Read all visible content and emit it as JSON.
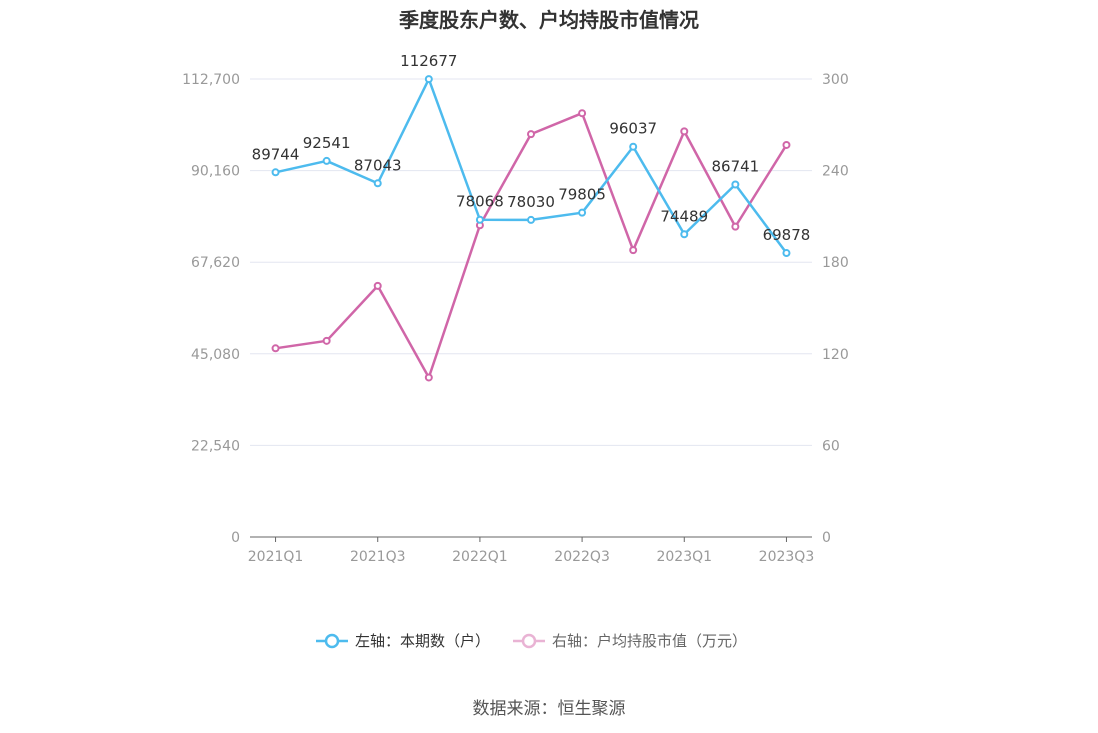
{
  "chart_data": {
    "type": "line",
    "title": "季度股东户数、户均持股市值情况",
    "categories": [
      "2021Q1",
      "2021Q2",
      "2021Q3",
      "2021Q4",
      "2022Q1",
      "2022Q2",
      "2022Q3",
      "2022Q4",
      "2023Q1",
      "2023Q2",
      "2023Q3"
    ],
    "x_tick_labels": [
      "2021Q1",
      "",
      "2021Q3",
      "",
      "2022Q1",
      "",
      "2022Q3",
      "",
      "2023Q1",
      "",
      "2023Q3"
    ],
    "left_axis": {
      "min": 0,
      "max": 112700,
      "ticks": [
        "0",
        "22,540",
        "45,080",
        "67,620",
        "90,160",
        "112,700"
      ]
    },
    "right_axis": {
      "min": 0,
      "max": 300,
      "ticks": [
        "0",
        "60",
        "120",
        "180",
        "240",
        "300"
      ]
    },
    "series": [
      {
        "name": "左轴：本期数（户）",
        "axis": "left",
        "color": "#4dbbee",
        "values": [
          89744,
          92541,
          87043,
          112677,
          78068,
          78030,
          79805,
          96037,
          74489,
          86741,
          69878
        ],
        "labels": [
          "89744",
          "92541",
          "87043",
          "112677",
          "78068",
          "78030",
          "79805",
          "96037",
          "74489",
          "86741",
          "69878"
        ]
      },
      {
        "name": "右轴：户均持股市值（万元）",
        "axis": "right",
        "color": "#d066a8",
        "values": [
          123.6,
          128.5,
          164.5,
          104.5,
          204.2,
          263.9,
          277.6,
          187.9,
          265.7,
          203.3,
          256.8
        ]
      }
    ],
    "grid": true,
    "legend_position": "bottom"
  },
  "source_text": "数据来源：恒生聚源"
}
